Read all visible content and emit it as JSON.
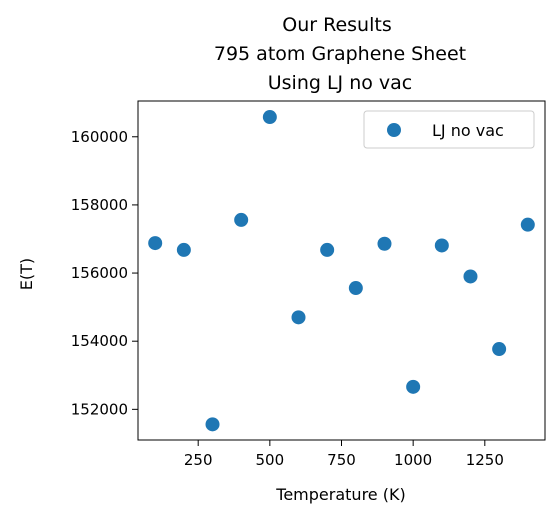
{
  "chart_data": {
    "type": "scatter",
    "title_lines": [
      "Our Results",
      "795 atom Graphene Sheet",
      "Using LJ no vac"
    ],
    "xlabel": "Temperature (K)",
    "ylabel": "E(T)",
    "xlim": [
      40,
      1460
    ],
    "ylim": [
      151100,
      161050
    ],
    "x_ticks": [
      250,
      500,
      750,
      1000,
      1250
    ],
    "x_tick_labels": [
      "250",
      "500",
      "750",
      "1000",
      "1250"
    ],
    "y_ticks": [
      152000,
      154000,
      156000,
      158000,
      160000
    ],
    "y_tick_labels": [
      "152000",
      "154000",
      "156000",
      "158000",
      "160000"
    ],
    "grid": false,
    "legend_position": "top-right",
    "series": [
      {
        "name": "LJ no vac",
        "color": "#1f77b4",
        "x": [
          100,
          200,
          300,
          400,
          500,
          600,
          700,
          800,
          900,
          1000,
          1100,
          1200,
          1300,
          1400
        ],
        "y": [
          156880,
          156680,
          151560,
          157560,
          160580,
          154700,
          156680,
          155560,
          156860,
          152660,
          156810,
          155900,
          153770,
          157420
        ]
      }
    ]
  }
}
